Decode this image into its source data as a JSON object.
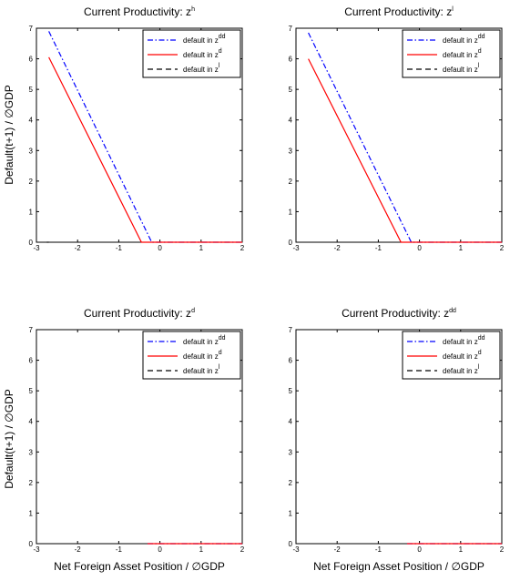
{
  "figure": {
    "ylabel": "Default(t+1) / ∅GDP",
    "xlabel": "Net Foreign Asset Position / ∅GDP"
  },
  "legend": [
    {
      "label": "default in z",
      "sup": "dd",
      "color": "#0000ff",
      "dash": "dashdot"
    },
    {
      "label": "default in z",
      "sup": "d",
      "color": "#ff0000",
      "dash": "solid"
    },
    {
      "label": "default in z",
      "sup": "l",
      "color": "#000000",
      "dash": "dashed"
    }
  ],
  "chart_data": [
    {
      "type": "line",
      "title": "Current Productivity: z",
      "title_sup": "h",
      "xlim": [
        -3,
        2
      ],
      "ylim": [
        0,
        7
      ],
      "xticks": [
        -3,
        -2,
        -1,
        0,
        1,
        2
      ],
      "yticks": [
        0,
        1,
        2,
        3,
        4,
        5,
        6,
        7
      ],
      "series": [
        {
          "name": "default in zdd",
          "x": [
            -2.7,
            -0.2,
            2
          ],
          "y": [
            6.9,
            0,
            0
          ]
        },
        {
          "name": "default in zd",
          "x": [
            -2.7,
            -0.45,
            2
          ],
          "y": [
            6.05,
            0,
            0
          ]
        },
        {
          "name": "default in zl",
          "x": [
            -2.75,
            -2.7
          ],
          "y": [
            0,
            0
          ]
        }
      ]
    },
    {
      "type": "line",
      "title": "Current Productivity: z",
      "title_sup": "l",
      "xlim": [
        -3,
        2
      ],
      "ylim": [
        0,
        7
      ],
      "xticks": [
        -3,
        -2,
        -1,
        0,
        1,
        2
      ],
      "yticks": [
        0,
        1,
        2,
        3,
        4,
        5,
        6,
        7
      ],
      "series": [
        {
          "name": "default in zdd",
          "x": [
            -2.7,
            -0.2,
            2
          ],
          "y": [
            6.85,
            0,
            0
          ]
        },
        {
          "name": "default in zd",
          "x": [
            -2.7,
            -0.45,
            2
          ],
          "y": [
            6.0,
            0,
            0
          ]
        },
        {
          "name": "default in zl",
          "x": [],
          "y": []
        }
      ]
    },
    {
      "type": "line",
      "title": "Current Productivity: z",
      "title_sup": "d",
      "xlim": [
        -3,
        2
      ],
      "ylim": [
        0,
        7
      ],
      "xticks": [
        -3,
        -2,
        -1,
        0,
        1,
        2
      ],
      "yticks": [
        0,
        1,
        2,
        3,
        4,
        5,
        6,
        7
      ],
      "series": [
        {
          "name": "default in zdd",
          "x": [
            -0.3,
            2
          ],
          "y": [
            0,
            0
          ]
        },
        {
          "name": "default in zd",
          "x": [
            -0.3,
            2
          ],
          "y": [
            0,
            0
          ]
        },
        {
          "name": "default in zl",
          "x": [],
          "y": []
        }
      ]
    },
    {
      "type": "line",
      "title": "Current Productivity: z",
      "title_sup": "dd",
      "xlim": [
        -3,
        2
      ],
      "ylim": [
        0,
        7
      ],
      "xticks": [
        -3,
        -2,
        -1,
        0,
        1,
        2
      ],
      "yticks": [
        0,
        1,
        2,
        3,
        4,
        5,
        6,
        7
      ],
      "series": [
        {
          "name": "default in zdd",
          "x": [
            -0.3,
            2
          ],
          "y": [
            0,
            0
          ]
        },
        {
          "name": "default in zd",
          "x": [
            -0.3,
            2
          ],
          "y": [
            0,
            0
          ]
        },
        {
          "name": "default in zl",
          "x": [],
          "y": []
        }
      ]
    }
  ]
}
